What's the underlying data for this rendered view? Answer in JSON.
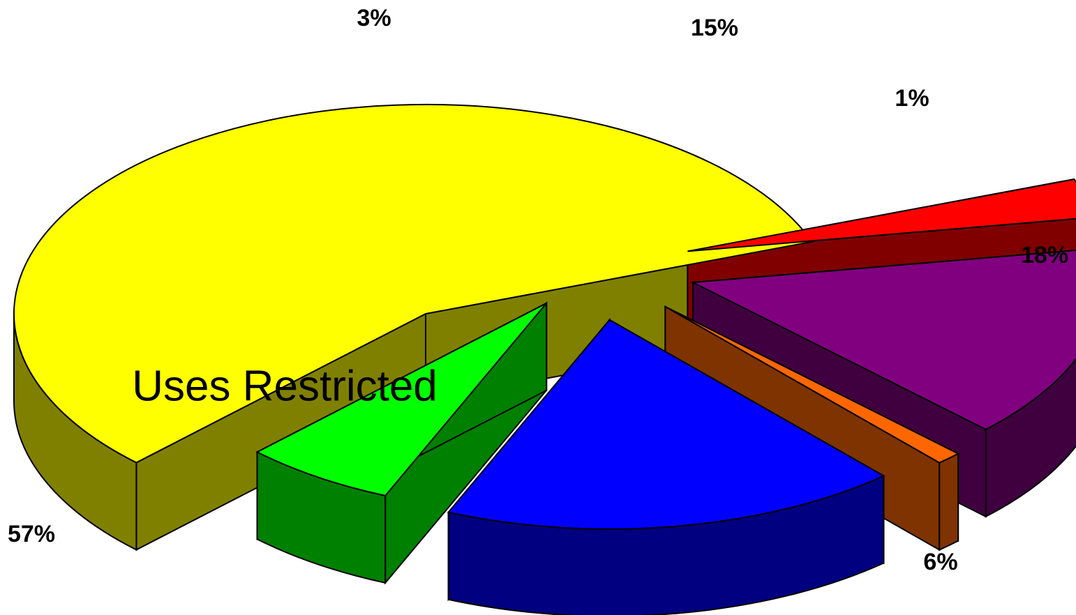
{
  "chart_data": {
    "type": "pie",
    "style": "3d-exploded",
    "slices": [
      {
        "value": 57,
        "label": "57%",
        "color": "#ffff00",
        "side_color": "#808000"
      },
      {
        "value": 3,
        "label": "3%",
        "color": "#ff0000",
        "side_color": "#800000"
      },
      {
        "value": 15,
        "label": "15%",
        "color": "#800080",
        "side_color": "#400040"
      },
      {
        "value": 1,
        "label": "1%",
        "color": "#ff6600",
        "side_color": "#7f3300"
      },
      {
        "value": 18,
        "label": "18%",
        "color": "#0000ff",
        "side_color": "#000080"
      },
      {
        "value": 6,
        "label": "6%",
        "color": "#00ff00",
        "side_color": "#008000"
      }
    ],
    "annotations": [
      {
        "text": "Uses Restricted",
        "slice": 0
      }
    ]
  }
}
